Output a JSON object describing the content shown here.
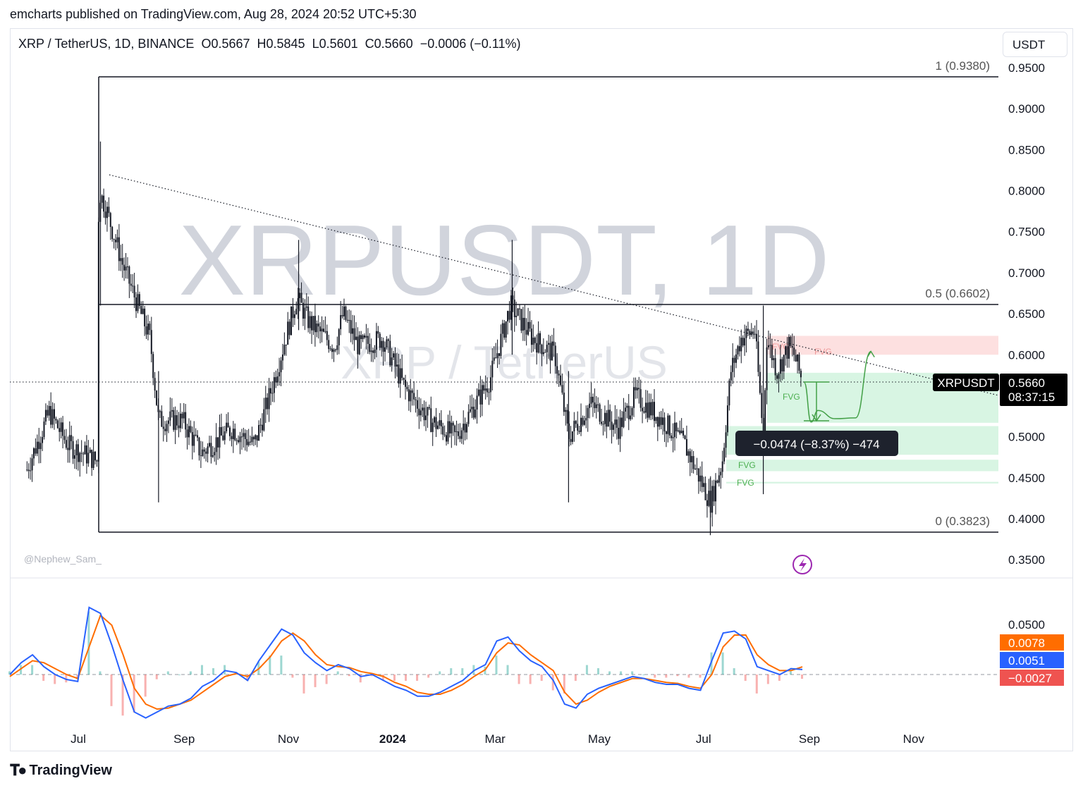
{
  "header": {
    "published_text": "emcharts published on TradingView.com, Aug 28, 2024 20:52 UTC+5:30"
  },
  "symbol": {
    "name": "XRP / TetherUS, 1D, BINANCE",
    "open": "O0.5667",
    "high": "H0.5845",
    "low": "L0.5601",
    "close": "C0.5660",
    "change": "−0.0006 (−0.11%)"
  },
  "currency_button": "USDT",
  "watermark": {
    "main": "XRPUSDT, 1D",
    "sub": "XRP / TetherUS"
  },
  "author_tag": "@Nephew_Sam_",
  "price_badge": {
    "ticker": "XRPUSDT",
    "price": "0.5660",
    "countdown": "08:37:15"
  },
  "measure_label": "−0.0474 (−8.37%) −474",
  "fib_labels": {
    "top": "1 (0.9380)",
    "mid": "0.5 (0.6602)",
    "bottom": "0 (0.3823)"
  },
  "fvg_label": "FVG",
  "macd_badges": {
    "signal": "0.0078",
    "macd": "0.0051",
    "hist": "−0.0027",
    "axis_top": "0.0500"
  },
  "colors": {
    "bull_fvg": "#d8f5e3",
    "bear_fvg": "#fde0e0",
    "macd_line": "#2962ff",
    "signal_line": "#ff6d00",
    "hist_pos": "#26a69a",
    "hist_neg": "#ef5350",
    "projection": "#43a047",
    "watermark": "#d1d4dc"
  },
  "footer": {
    "brand": "TradingView"
  },
  "chart_data": {
    "type": "candlestick",
    "symbol": "XRPUSDT",
    "interval": "1D",
    "y_axis": {
      "ticks": [
        0.35,
        0.4,
        0.45,
        0.5,
        0.55,
        0.6,
        0.65,
        0.7,
        0.75,
        0.8,
        0.85,
        0.9,
        0.95
      ],
      "tick_labels": [
        "0.3500",
        "0.4000",
        "0.4500",
        "0.5000",
        "0.5500",
        "0.6000",
        "0.6500",
        "0.7000",
        "0.7500",
        "0.8000",
        "0.8500",
        "0.9000",
        "0.9500"
      ],
      "range": [
        0.33,
        0.975
      ]
    },
    "x_axis": {
      "ticks": [
        "Jul",
        "Sep",
        "Nov",
        "2024",
        "Mar",
        "May",
        "Jul",
        "Sep",
        "Nov"
      ]
    },
    "price_path": [
      {
        "date": "2023-06-01",
        "price": 0.46
      },
      {
        "date": "2023-06-14",
        "price": 0.53
      },
      {
        "date": "2023-06-25",
        "price": 0.49
      },
      {
        "date": "2023-07-12",
        "price": 0.47
      },
      {
        "date": "2023-07-13",
        "price": 0.8
      },
      {
        "date": "2023-07-17",
        "price": 0.78
      },
      {
        "date": "2023-07-27",
        "price": 0.71
      },
      {
        "date": "2023-08-12",
        "price": 0.62
      },
      {
        "date": "2023-08-17",
        "price": 0.52
      },
      {
        "date": "2023-08-31",
        "price": 0.52
      },
      {
        "date": "2023-09-11",
        "price": 0.48
      },
      {
        "date": "2023-09-29",
        "price": 0.51
      },
      {
        "date": "2023-10-12",
        "price": 0.49
      },
      {
        "date": "2023-10-21",
        "price": 0.55
      },
      {
        "date": "2023-11-06",
        "price": 0.67
      },
      {
        "date": "2023-11-13",
        "price": 0.64
      },
      {
        "date": "2023-11-28",
        "price": 0.61
      },
      {
        "date": "2023-12-03",
        "price": 0.65
      },
      {
        "date": "2023-12-12",
        "price": 0.61
      },
      {
        "date": "2023-12-26",
        "price": 0.62
      },
      {
        "date": "2024-01-08",
        "price": 0.56
      },
      {
        "date": "2024-01-23",
        "price": 0.52
      },
      {
        "date": "2024-02-07",
        "price": 0.5
      },
      {
        "date": "2024-02-27",
        "price": 0.57
      },
      {
        "date": "2024-03-10",
        "price": 0.66
      },
      {
        "date": "2024-03-23",
        "price": 0.62
      },
      {
        "date": "2024-04-05",
        "price": 0.6
      },
      {
        "date": "2024-04-13",
        "price": 0.5
      },
      {
        "date": "2024-04-26",
        "price": 0.54
      },
      {
        "date": "2024-05-12",
        "price": 0.51
      },
      {
        "date": "2024-05-22",
        "price": 0.55
      },
      {
        "date": "2024-06-07",
        "price": 0.52
      },
      {
        "date": "2024-06-20",
        "price": 0.49
      },
      {
        "date": "2024-07-05",
        "price": 0.42
      },
      {
        "date": "2024-07-12",
        "price": 0.47
      },
      {
        "date": "2024-07-17",
        "price": 0.58
      },
      {
        "date": "2024-07-23",
        "price": 0.62
      },
      {
        "date": "2024-07-31",
        "price": 0.63
      },
      {
        "date": "2024-08-05",
        "price": 0.5
      },
      {
        "date": "2024-08-07",
        "price": 0.62
      },
      {
        "date": "2024-08-13",
        "price": 0.58
      },
      {
        "date": "2024-08-20",
        "price": 0.61
      },
      {
        "date": "2024-08-23",
        "price": 0.6
      },
      {
        "date": "2024-08-28",
        "price": 0.566
      }
    ],
    "fib_levels": [
      {
        "label": "1 (0.9380)",
        "value": 0.938
      },
      {
        "label": "0.5 (0.6602)",
        "value": 0.6602
      },
      {
        "label": "0 (0.3823)",
        "value": 0.3823
      }
    ],
    "trendline": {
      "from": {
        "date": "2023-07-17",
        "price": 0.82
      },
      "to": {
        "date": "2024-10-12",
        "price": 0.555
      }
    },
    "current_price": 0.566,
    "fvg_zones": [
      {
        "type": "bearish",
        "top": 0.623,
        "bottom": 0.6
      },
      {
        "type": "bullish",
        "top": 0.578,
        "bottom": 0.517
      },
      {
        "type": "bullish",
        "top": 0.513,
        "bottom": 0.478
      },
      {
        "type": "bullish",
        "top": 0.472,
        "bottom": 0.458
      },
      {
        "type": "bullish",
        "top": 0.445,
        "bottom": 0.443
      }
    ],
    "measurement": {
      "from": 0.566,
      "to": 0.5186,
      "change": -0.0474,
      "percent": -8.37,
      "ticks": -474
    },
    "projection_path": [
      {
        "date": "2024-08-29",
        "price": 0.566
      },
      {
        "date": "2024-09-02",
        "price": 0.518
      },
      {
        "date": "2024-09-06",
        "price": 0.532
      },
      {
        "date": "2024-09-16",
        "price": 0.522
      },
      {
        "date": "2024-09-28",
        "price": 0.523
      },
      {
        "date": "2024-10-07",
        "price": 0.604
      }
    ],
    "macd": {
      "macd_line": [
        0.0,
        0.012,
        0.02,
        0.008,
        0.0,
        -0.005,
        -0.007,
        0.068,
        0.062,
        0.03,
        -0.006,
        -0.038,
        -0.044,
        -0.038,
        -0.032,
        -0.03,
        -0.024,
        -0.012,
        -0.006,
        0.004,
        0.002,
        -0.006,
        0.014,
        0.03,
        0.046,
        0.04,
        0.022,
        0.012,
        0.004,
        0.01,
        0.006,
        -0.002,
        0.0,
        -0.006,
        -0.012,
        -0.016,
        -0.022,
        -0.022,
        -0.018,
        -0.012,
        -0.006,
        0.004,
        0.01,
        0.034,
        0.038,
        0.024,
        0.014,
        0.008,
        -0.006,
        -0.03,
        -0.034,
        -0.02,
        -0.014,
        -0.01,
        -0.006,
        -0.002,
        -0.004,
        -0.008,
        -0.01,
        -0.01,
        -0.014,
        -0.016,
        0.014,
        0.042,
        0.044,
        0.036,
        0.008,
        0.004,
        0.0,
        0.006,
        0.0051
      ],
      "signal_line": [
        -0.002,
        0.006,
        0.014,
        0.012,
        0.006,
        0.0,
        -0.004,
        0.028,
        0.06,
        0.05,
        0.02,
        -0.014,
        -0.03,
        -0.035,
        -0.034,
        -0.03,
        -0.026,
        -0.018,
        -0.01,
        -0.002,
        0.001,
        -0.002,
        0.006,
        0.018,
        0.034,
        0.042,
        0.034,
        0.02,
        0.01,
        0.008,
        0.007,
        0.003,
        0.001,
        -0.002,
        -0.008,
        -0.012,
        -0.018,
        -0.02,
        -0.02,
        -0.016,
        -0.01,
        -0.002,
        0.005,
        0.022,
        0.032,
        0.03,
        0.02,
        0.012,
        0.004,
        -0.018,
        -0.03,
        -0.026,
        -0.018,
        -0.012,
        -0.008,
        -0.004,
        -0.004,
        -0.006,
        -0.008,
        -0.009,
        -0.012,
        -0.014,
        0.0,
        0.028,
        0.04,
        0.04,
        0.02,
        0.01,
        0.004,
        0.004,
        0.0078
      ],
      "current": {
        "macd": 0.0051,
        "signal": 0.0078,
        "histogram": -0.0027
      }
    }
  }
}
